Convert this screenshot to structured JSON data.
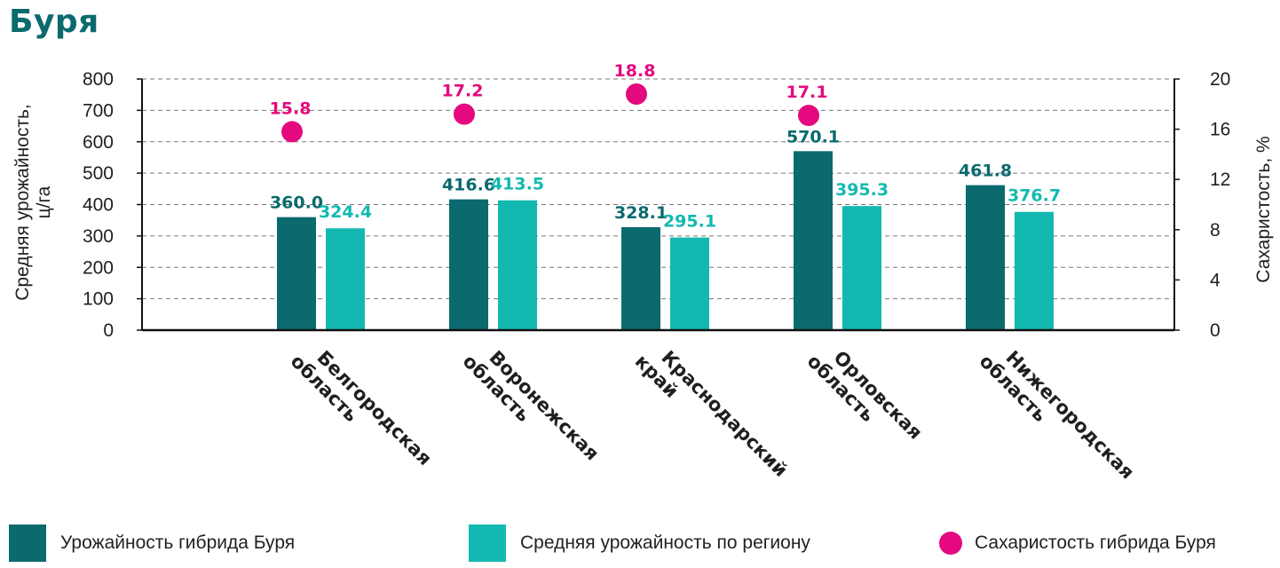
{
  "title": "Буря",
  "chart_data": {
    "type": "bar",
    "categories": [
      "Белгородская\nобласть",
      "Воронежская\nобласть",
      "Краснодарский\nкрай",
      "Орловская\nобласть",
      "Нижегородская\nобласть"
    ],
    "series": [
      {
        "name": "Урожайность гибрида Буря",
        "type": "bar",
        "axis": "left",
        "values": [
          360.0,
          416.6,
          328.1,
          570.1,
          461.8
        ],
        "labels": [
          "360.0",
          "416.6",
          "328.1",
          "570.1",
          "461.8"
        ],
        "color": "#0b6a6e"
      },
      {
        "name": "Средняя урожайность по региону",
        "type": "bar",
        "axis": "left",
        "values": [
          324.4,
          413.5,
          295.1,
          395.3,
          376.7
        ],
        "labels": [
          "324.4",
          "413.5",
          "295.1",
          "395.3",
          "376.7"
        ],
        "color": "#13b9b0"
      },
      {
        "name": "Сахаристость гибрида Буря",
        "type": "scatter",
        "axis": "right",
        "values": [
          15.8,
          17.2,
          18.8,
          17.1,
          null
        ],
        "labels": [
          "15.8",
          "17.2",
          "18.8",
          "17.1",
          ""
        ],
        "color": "#e5097f"
      }
    ],
    "ylabel": "Средняя урожайность,\nц/га",
    "ylim": [
      0,
      800
    ],
    "yticks": [
      "0",
      "100",
      "200",
      "300",
      "400",
      "500",
      "600",
      "700",
      "800"
    ],
    "y2label": "Сахаристость, %",
    "y2lim": [
      0,
      20
    ],
    "y2ticks": [
      "0",
      "4",
      "8",
      "12",
      "16",
      "20"
    ],
    "grid": true,
    "legend_position": "bottom"
  }
}
